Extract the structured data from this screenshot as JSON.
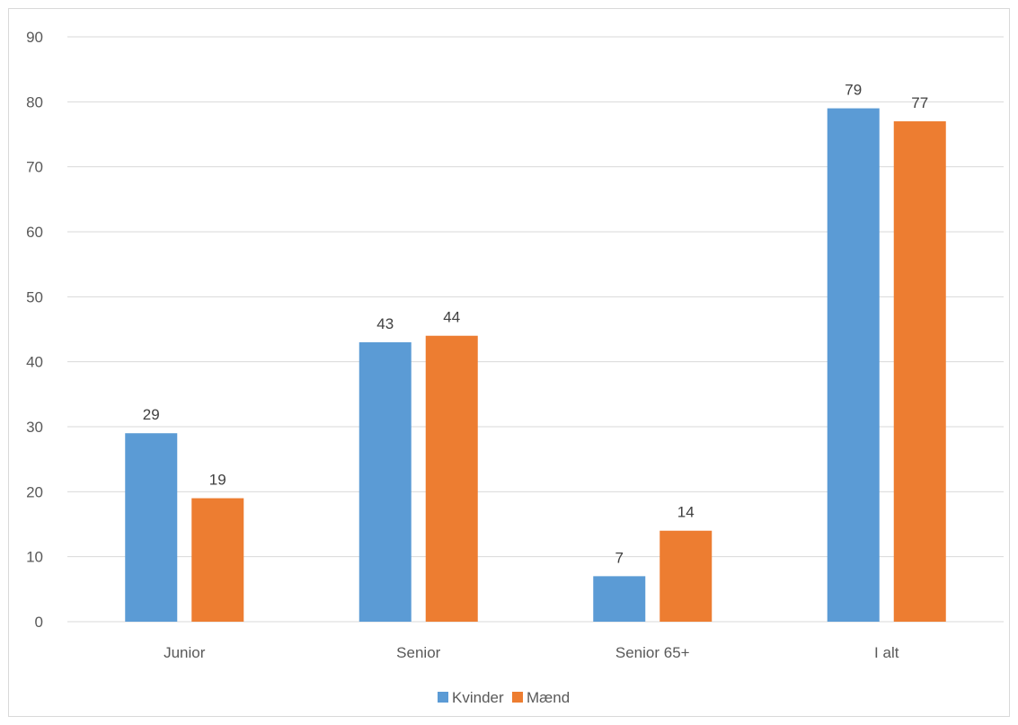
{
  "chart_data": {
    "type": "bar",
    "categories": [
      "Junior",
      "Senior",
      "Senior 65+",
      "I alt"
    ],
    "series": [
      {
        "name": "Kvinder",
        "values": [
          29,
          43,
          7,
          79
        ],
        "color": "#5b9bd5"
      },
      {
        "name": "Mænd",
        "values": [
          19,
          44,
          14,
          77
        ],
        "color": "#ed7d31"
      }
    ],
    "title": "",
    "xlabel": "",
    "ylabel": "",
    "ylim": [
      0,
      90
    ],
    "yticks": [
      0,
      10,
      20,
      30,
      40,
      50,
      60,
      70,
      80,
      90
    ],
    "grid": true,
    "gridColor": "#d9d9d9",
    "legend": "bottom-center",
    "data_labels": true
  }
}
